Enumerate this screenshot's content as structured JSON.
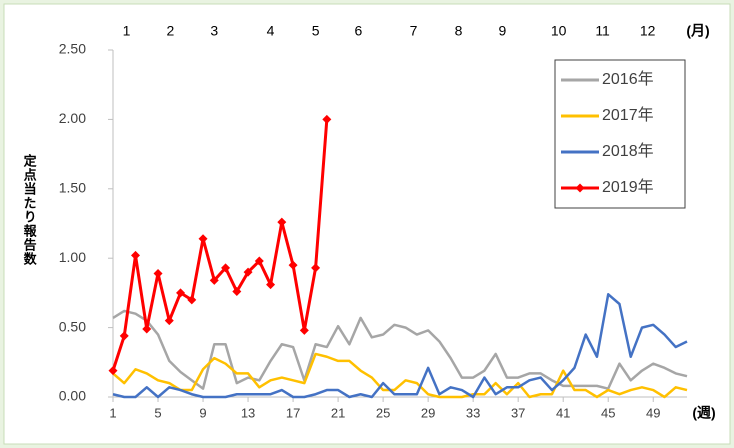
{
  "chart_data": {
    "type": "line",
    "y_label": "定点当たり報告数",
    "x_unit": "(週)",
    "x2_unit": "(月)",
    "x": [
      1,
      2,
      3,
      4,
      5,
      6,
      7,
      8,
      9,
      10,
      11,
      12,
      13,
      14,
      15,
      16,
      17,
      18,
      19,
      20,
      21,
      22,
      23,
      24,
      25,
      26,
      27,
      28,
      29,
      30,
      31,
      32,
      33,
      34,
      35,
      36,
      37,
      38,
      39,
      40,
      41,
      42,
      43,
      44,
      45,
      46,
      47,
      48,
      49,
      50,
      51,
      52
    ],
    "xlim": [
      1,
      52
    ],
    "xticks": [
      1,
      5,
      9,
      13,
      17,
      21,
      25,
      29,
      33,
      37,
      41,
      45,
      49
    ],
    "x2ticks": [
      {
        "value": 2.2,
        "label": "1"
      },
      {
        "value": 6.1,
        "label": "2"
      },
      {
        "value": 10,
        "label": "3"
      },
      {
        "value": 15,
        "label": "4"
      },
      {
        "value": 19,
        "label": "5"
      },
      {
        "value": 22.8,
        "label": "6"
      },
      {
        "value": 27.7,
        "label": "7"
      },
      {
        "value": 31.7,
        "label": "8"
      },
      {
        "value": 35.6,
        "label": "9"
      },
      {
        "value": 40.6,
        "label": "10"
      },
      {
        "value": 44.5,
        "label": "11"
      },
      {
        "value": 48.5,
        "label": "12"
      }
    ],
    "ylim": [
      0,
      2.5
    ],
    "yticks": [
      {
        "value": 0,
        "label": "0.00"
      },
      {
        "value": 0.5,
        "label": "0.50"
      },
      {
        "value": 1,
        "label": "1.00"
      },
      {
        "value": 1.5,
        "label": "1.50"
      },
      {
        "value": 2,
        "label": "2.00"
      },
      {
        "value": 2.5,
        "label": "2.50"
      }
    ],
    "legend": "upper right",
    "series": [
      {
        "name": "2016年",
        "color": "#a6a6a6",
        "values": [
          0.57,
          0.62,
          0.6,
          0.55,
          0.45,
          0.26,
          0.18,
          0.12,
          0.06,
          0.38,
          0.38,
          0.1,
          0.14,
          0.12,
          0.26,
          0.38,
          0.36,
          0.12,
          0.38,
          0.36,
          0.51,
          0.38,
          0.57,
          0.43,
          0.45,
          0.52,
          0.5,
          0.45,
          0.48,
          0.4,
          0.28,
          0.14,
          0.14,
          0.19,
          0.31,
          0.14,
          0.14,
          0.17,
          0.17,
          0.12,
          0.08,
          0.08,
          0.08,
          0.08,
          0.06,
          0.24,
          0.12,
          0.19,
          0.24,
          0.21,
          0.17,
          0.15
        ]
      },
      {
        "name": "2017年",
        "color": "#ffc000",
        "values": [
          0.17,
          0.1,
          0.2,
          0.17,
          0.12,
          0.1,
          0.05,
          0.05,
          0.2,
          0.28,
          0.24,
          0.17,
          0.17,
          0.07,
          0.12,
          0.14,
          0.12,
          0.1,
          0.31,
          0.29,
          0.26,
          0.26,
          0.19,
          0.14,
          0.05,
          0.05,
          0.12,
          0.1,
          0.02,
          0,
          0,
          0,
          0.02,
          0.02,
          0.1,
          0.02,
          0.1,
          0,
          0.02,
          0.02,
          0.19,
          0.05,
          0.05,
          0,
          0.05,
          0.02,
          0.05,
          0.07,
          0.05,
          0,
          0.07,
          0.05
        ]
      },
      {
        "name": "2018年",
        "color": "#4472c4",
        "values": [
          0.02,
          0,
          0,
          0.07,
          0,
          0.07,
          0.05,
          0.02,
          0,
          0,
          0,
          0.02,
          0.02,
          0.02,
          0.02,
          0.05,
          0,
          0,
          0.02,
          0.05,
          0.05,
          0,
          0.02,
          0,
          0.1,
          0.02,
          0.02,
          0.02,
          0.21,
          0.02,
          0.07,
          0.05,
          0,
          0.14,
          0.02,
          0.07,
          0.07,
          0.12,
          0.14,
          0.05,
          0.12,
          0.21,
          0.45,
          0.29,
          0.74,
          0.67,
          0.29,
          0.5,
          0.52,
          0.45,
          0.36,
          0.4
        ]
      },
      {
        "name": "2019年",
        "color": "#ff0000",
        "marker": "diamond",
        "values": [
          0.19,
          0.44,
          1.02,
          0.49,
          0.89,
          0.55,
          0.75,
          0.7,
          1.14,
          0.84,
          0.93,
          0.76,
          0.9,
          0.98,
          0.81,
          1.26,
          0.95,
          0.48,
          0.93,
          2.0,
          null,
          null,
          null,
          null,
          null,
          null,
          null,
          null,
          null,
          null,
          null,
          null,
          null,
          null,
          null,
          null,
          null,
          null,
          null,
          null,
          null,
          null,
          null,
          null,
          null,
          null,
          null,
          null,
          null,
          null,
          null,
          null
        ]
      }
    ]
  }
}
